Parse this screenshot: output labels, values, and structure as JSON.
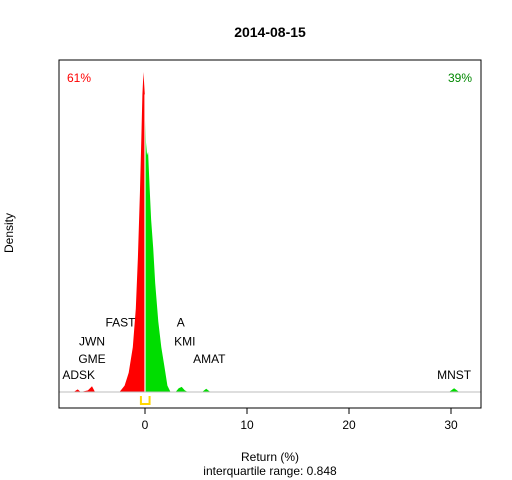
{
  "chart_data": {
    "type": "area",
    "title": "2014-08-15",
    "xlabel": "Return (%)",
    "ylabel": "Density",
    "subtitle": "interquartile range: 0.848",
    "xlim": [
      -8,
      32
    ],
    "ylim": [
      0,
      1
    ],
    "x_ticks": [
      0,
      10,
      20,
      30
    ],
    "x_tick_labels": [
      "0",
      "10",
      "20",
      "30"
    ],
    "grid": false,
    "left_percent_label": "61%",
    "right_percent_label": "39%",
    "negative_color": "#ff0000",
    "positive_color": "#00dd00",
    "iqr_marker_color": "#ffd700",
    "baseline_color": "#bebebe",
    "split_at": 0,
    "series": [
      {
        "values": [
          [
            -7.0,
            0.0
          ],
          [
            -6.6,
            0.008
          ],
          [
            -6.3,
            0.0
          ],
          [
            -5.6,
            0.005
          ],
          [
            -5.2,
            0.018
          ],
          [
            -4.9,
            0.0
          ],
          [
            -2.5,
            0.0
          ],
          [
            -2.0,
            0.02
          ],
          [
            -1.6,
            0.06
          ],
          [
            -1.2,
            0.14
          ],
          [
            -0.9,
            0.26
          ],
          [
            -0.7,
            0.42
          ],
          [
            -0.5,
            0.62
          ],
          [
            -0.35,
            0.8
          ],
          [
            -0.25,
            0.93
          ],
          [
            -0.15,
            1.0
          ],
          [
            -0.08,
            0.96
          ],
          [
            0.0,
            0.92
          ],
          [
            0.1,
            0.78
          ],
          [
            0.2,
            0.74
          ],
          [
            0.3,
            0.75
          ],
          [
            0.45,
            0.64
          ],
          [
            0.6,
            0.54
          ],
          [
            0.8,
            0.45
          ],
          [
            1.0,
            0.34
          ],
          [
            1.3,
            0.22
          ],
          [
            1.6,
            0.14
          ],
          [
            1.9,
            0.08
          ],
          [
            2.2,
            0.02
          ],
          [
            2.5,
            0.0
          ],
          [
            3.0,
            0.0
          ],
          [
            3.3,
            0.012
          ],
          [
            3.6,
            0.016
          ],
          [
            3.9,
            0.005
          ],
          [
            4.2,
            0.0
          ],
          [
            5.6,
            0.0
          ],
          [
            6.0,
            0.01
          ],
          [
            6.4,
            0.0
          ],
          [
            29.8,
            0.0
          ],
          [
            30.3,
            0.012
          ],
          [
            30.8,
            0.0
          ]
        ]
      }
    ],
    "labels": [
      {
        "text": "ADSK",
        "x": -6.5,
        "y": 0.04
      },
      {
        "text": "GME",
        "x": -5.2,
        "y": 0.09
      },
      {
        "text": "JWN",
        "x": -5.2,
        "y": 0.145
      },
      {
        "text": "FAST",
        "x": -2.4,
        "y": 0.205
      },
      {
        "text": "A",
        "x": 3.5,
        "y": 0.205
      },
      {
        "text": "KMI",
        "x": 3.9,
        "y": 0.145
      },
      {
        "text": "AMAT",
        "x": 6.3,
        "y": 0.09
      },
      {
        "text": "MNST",
        "x": 30.3,
        "y": 0.04
      }
    ],
    "iqr_marker": {
      "q1": -0.4,
      "q3": 0.448
    }
  }
}
